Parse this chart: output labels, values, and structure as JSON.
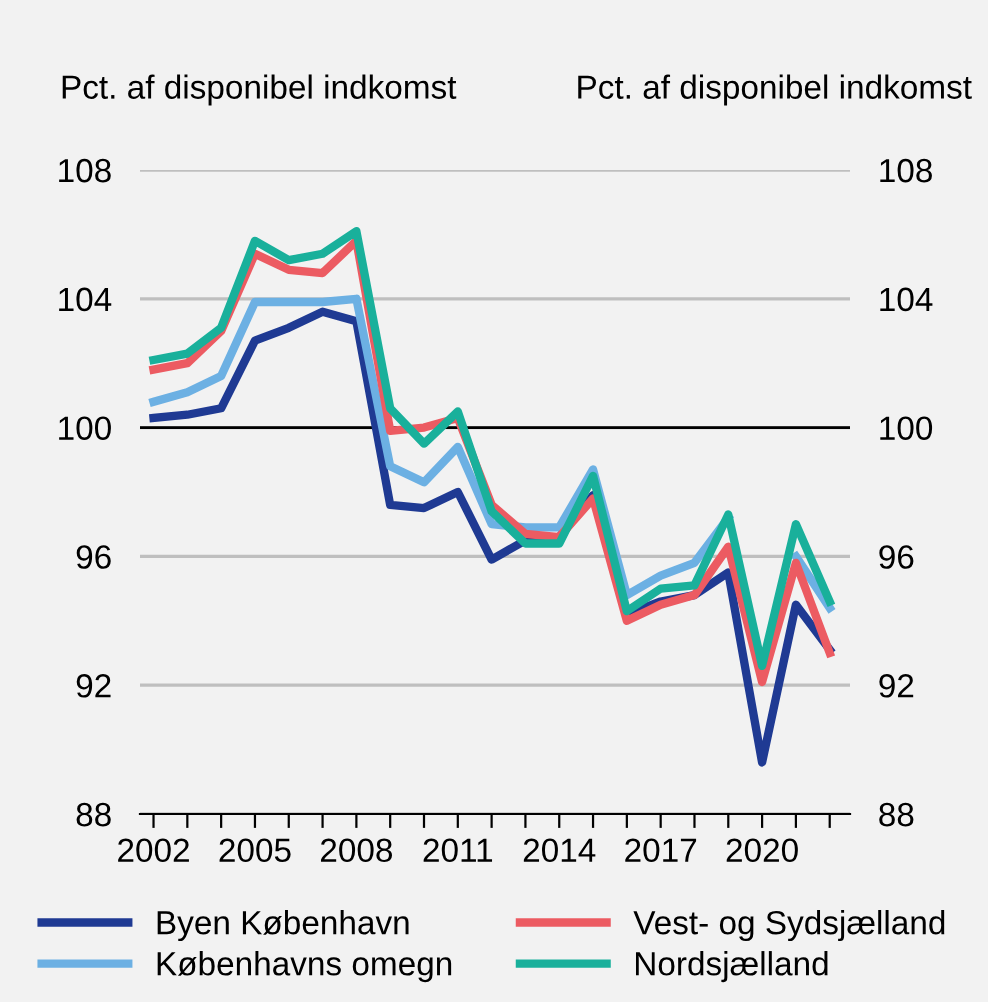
{
  "chart_data": {
    "type": "line",
    "ylabel": "Pct. af disponibel indkomst",
    "y2label": "Pct. af disponibel indkomst",
    "x": [
      2002,
      2003,
      2004,
      2005,
      2006,
      2007,
      2008,
      2009,
      2010,
      2011,
      2012,
      2013,
      2014,
      2015,
      2016,
      2017,
      2018,
      2019,
      2020,
      2021,
      2022
    ],
    "series": [
      {
        "name": "Byen København",
        "color": "#1f3a93",
        "values": [
          100.3,
          100.4,
          100.6,
          102.7,
          103.1,
          103.6,
          103.3,
          97.6,
          97.5,
          98.0,
          95.9,
          96.5,
          96.6,
          97.9,
          94.2,
          94.6,
          94.8,
          95.5,
          89.6,
          94.5,
          93.1
        ]
      },
      {
        "name": "Københavns omegn",
        "color": "#6cb0e3",
        "values": [
          100.8,
          101.1,
          101.6,
          103.9,
          103.9,
          103.9,
          104.0,
          98.8,
          98.3,
          99.4,
          97.0,
          96.9,
          96.9,
          98.7,
          94.8,
          95.4,
          95.8,
          97.2,
          null,
          96.0,
          94.4
        ]
      },
      {
        "name": "Vest- og Sydsjælland",
        "color": "#ec5b62",
        "values": [
          101.8,
          102.0,
          103.0,
          105.4,
          104.9,
          104.8,
          105.8,
          99.9,
          100.0,
          100.3,
          97.6,
          96.7,
          96.6,
          97.8,
          94.0,
          94.5,
          94.8,
          96.3,
          92.1,
          95.8,
          93.0
        ]
      },
      {
        "name": "Nordsjælland",
        "color": "#19b09b",
        "values": [
          102.1,
          102.3,
          103.1,
          105.8,
          105.2,
          105.4,
          106.1,
          100.6,
          99.5,
          100.5,
          97.4,
          96.4,
          96.4,
          98.5,
          94.3,
          95.0,
          95.1,
          97.3,
          92.6,
          97.0,
          94.6
        ]
      }
    ],
    "xlim": [
      2001.6,
      2022.6
    ],
    "xticks": [
      2002,
      {
        "value": 2003,
        "label": null
      },
      {
        "value": 2004,
        "label": null
      },
      2005,
      {
        "value": 2006,
        "label": null
      },
      {
        "value": 2007,
        "label": null
      },
      2008,
      {
        "value": 2009,
        "label": null
      },
      {
        "value": 2010,
        "label": null
      },
      2011,
      {
        "value": 2012,
        "label": null
      },
      {
        "value": 2013,
        "label": null
      },
      2014,
      {
        "value": 2015,
        "label": null
      },
      {
        "value": 2016,
        "label": null
      },
      2017,
      {
        "value": 2018,
        "label": null
      },
      {
        "value": 2019,
        "label": null
      },
      2020,
      {
        "value": 2021,
        "label": null
      },
      {
        "value": 2022,
        "label": null
      }
    ],
    "ylim": [
      88,
      108
    ],
    "yticks": [
      88,
      92,
      96,
      100,
      104,
      108
    ],
    "y2lim": [
      88,
      108
    ],
    "y2ticks": [
      88,
      92,
      96,
      100,
      104,
      108
    ],
    "ref_lines": [
      {
        "axis": "y",
        "value": 100,
        "color": "#000000"
      }
    ],
    "grid": "y",
    "legend": "bottom",
    "line_style": "solid",
    "marker": "none"
  }
}
